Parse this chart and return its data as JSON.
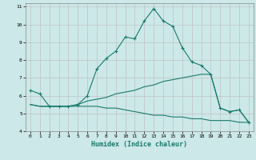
{
  "title": "",
  "xlabel": "Humidex (Indice chaleur)",
  "ylabel": "",
  "xlim": [
    -0.5,
    23.5
  ],
  "ylim": [
    4,
    11.2
  ],
  "yticks": [
    4,
    5,
    6,
    7,
    8,
    9,
    10,
    11
  ],
  "xticks": [
    0,
    1,
    2,
    3,
    4,
    5,
    6,
    7,
    8,
    9,
    10,
    11,
    12,
    13,
    14,
    15,
    16,
    17,
    18,
    19,
    20,
    21,
    22,
    23
  ],
  "background_color": "#cce8e8",
  "grid_color": "#bbbbbb",
  "line_color": "#1a7a6e",
  "lines": [
    {
      "x": [
        0,
        1,
        2,
        3,
        4,
        5,
        6,
        7,
        8,
        9,
        10,
        11,
        12,
        13,
        14,
        15,
        16,
        17,
        18,
        19,
        20,
        21,
        22,
        23
      ],
      "y": [
        6.3,
        6.1,
        5.4,
        5.4,
        5.4,
        5.5,
        6.0,
        7.5,
        8.1,
        8.5,
        9.3,
        9.2,
        10.2,
        10.9,
        10.2,
        9.9,
        8.7,
        7.9,
        7.7,
        7.2,
        5.3,
        5.1,
        5.2,
        4.5
      ],
      "marker": true
    },
    {
      "x": [
        0,
        1,
        2,
        3,
        4,
        5,
        6,
        7,
        8,
        9,
        10,
        11,
        12,
        13,
        14,
        15,
        16,
        17,
        18,
        19,
        20,
        21,
        22,
        23
      ],
      "y": [
        5.5,
        5.4,
        5.4,
        5.4,
        5.4,
        5.5,
        5.7,
        5.8,
        5.9,
        6.1,
        6.2,
        6.3,
        6.5,
        6.6,
        6.8,
        6.9,
        7.0,
        7.1,
        7.2,
        7.2,
        5.3,
        5.1,
        5.2,
        4.5
      ],
      "marker": false
    },
    {
      "x": [
        0,
        1,
        2,
        3,
        4,
        5,
        6,
        7,
        8,
        9,
        10,
        11,
        12,
        13,
        14,
        15,
        16,
        17,
        18,
        19,
        20,
        21,
        22,
        23
      ],
      "y": [
        5.5,
        5.4,
        5.4,
        5.4,
        5.4,
        5.4,
        5.4,
        5.4,
        5.3,
        5.3,
        5.2,
        5.1,
        5.0,
        4.9,
        4.9,
        4.8,
        4.8,
        4.7,
        4.7,
        4.6,
        4.6,
        4.6,
        4.5,
        4.5
      ],
      "marker": false
    }
  ]
}
